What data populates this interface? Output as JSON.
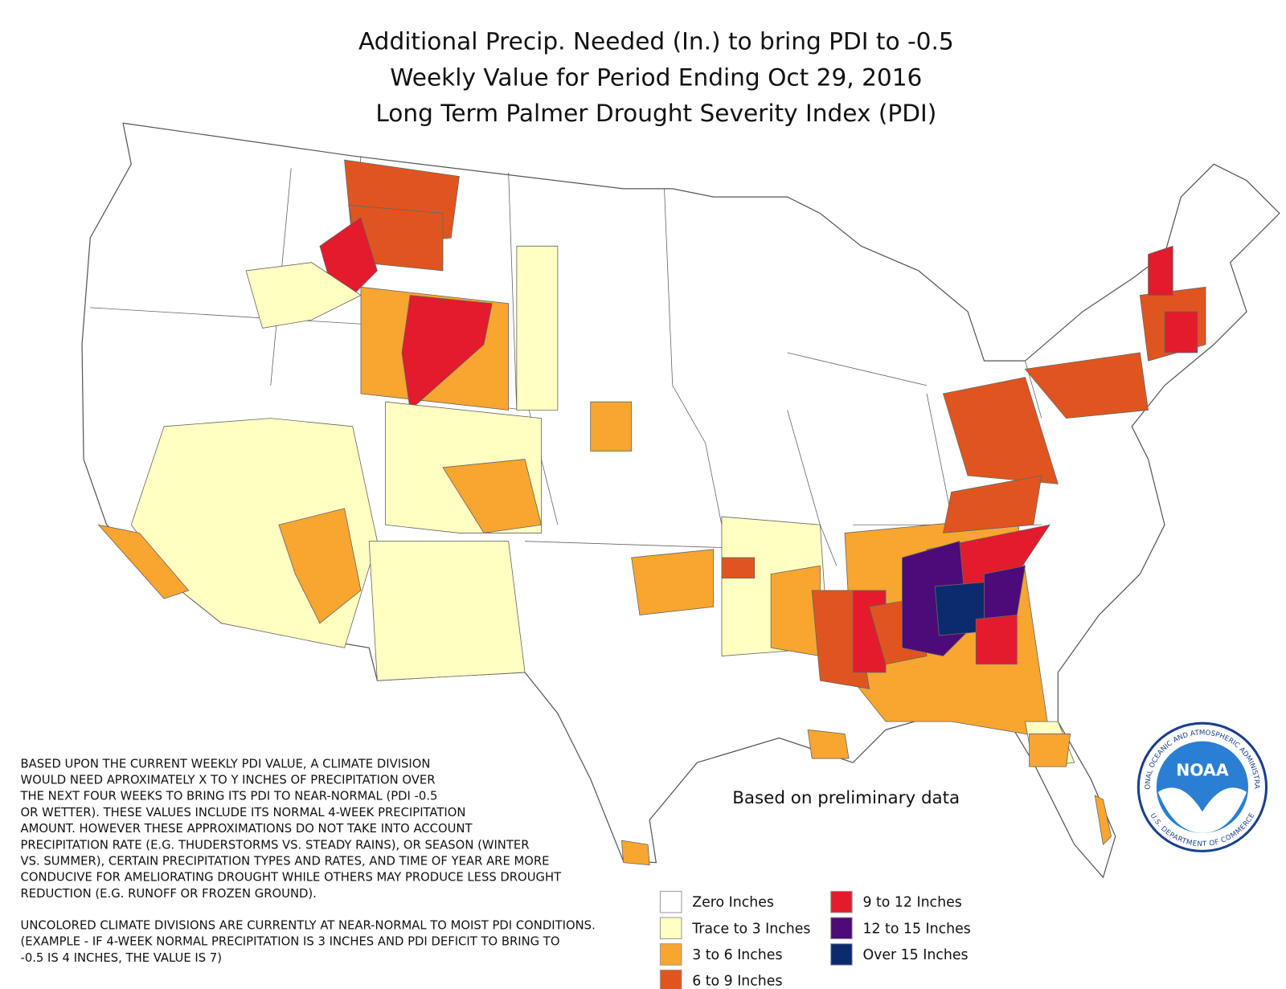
{
  "header": {
    "title_lines": [
      "Additional Precip. Needed (In.) to bring PDI to -0.5",
      "Weekly Value for Period Ending Oct 29, 2016",
      "Long Term Palmer Drought Severity Index (PDI)"
    ]
  },
  "legend": {
    "items": [
      {
        "label": "Zero Inches",
        "color": "#ffffff"
      },
      {
        "label": "Trace to 3 Inches",
        "color": "#ffffc2"
      },
      {
        "label": "3 to 6 Inches",
        "color": "#f8a630"
      },
      {
        "label": "6 to 9 Inches",
        "color": "#e0551f"
      },
      {
        "label": "9 to 12 Inches",
        "color": "#e31b2c"
      },
      {
        "label": "12 to 15 Inches",
        "color": "#4c0b78"
      },
      {
        "label": "Over 15 Inches",
        "color": "#0b2b6e"
      }
    ]
  },
  "annotation": "Based on preliminary data",
  "notes": {
    "paragraphs": [
      [
        "BASED UPON THE CURRENT WEEKLY PDI VALUE, A CLIMATE DIVISION",
        "WOULD NEED APROXIMATELY X TO Y INCHES OF PRECIPITATION OVER",
        "THE NEXT FOUR WEEKS TO BRING ITS PDI TO NEAR-NORMAL (PDI -0.5",
        "OR WETTER). THESE VALUES INCLUDE ITS NORMAL 4-WEEK PRECIPITATION",
        "AMOUNT. HOWEVER THESE APPROXIMATIONS DO NOT TAKE INTO ACCOUNT",
        "PRECIPITATION RATE (E.G. THUDERSTORMS VS. STEADY RAINS), OR SEASON (WINTER",
        "VS. SUMMER), CERTAIN PRECIPITATION TYPES AND RATES, AND TIME OF YEAR ARE MORE",
        "CONDUCIVE FOR AMELIORATING DROUGHT WHILE OTHERS MAY PRODUCE LESS DROUGHT",
        "REDUCTION (E.G. RUNOFF OR FROZEN GROUND)."
      ],
      [
        "UNCOLORED CLIMATE DIVISIONS ARE CURRENTLY AT NEAR-NORMAL TO MOIST PDI CONDITIONS.",
        "(EXAMPLE - IF 4-WEEK NORMAL PRECIPITATION IS 3 INCHES AND PDI DEFICIT TO BRING TO",
        "-0.5 IS 4 INCHES, THE VALUE IS 7)"
      ]
    ]
  },
  "logo": {
    "text": "NOAA",
    "ring_top": "NATIONAL OCEANIC AND ATMOSPHERIC ADMINISTRATION",
    "ring_bottom": "U.S. DEPARTMENT OF COMMERCE"
  }
}
